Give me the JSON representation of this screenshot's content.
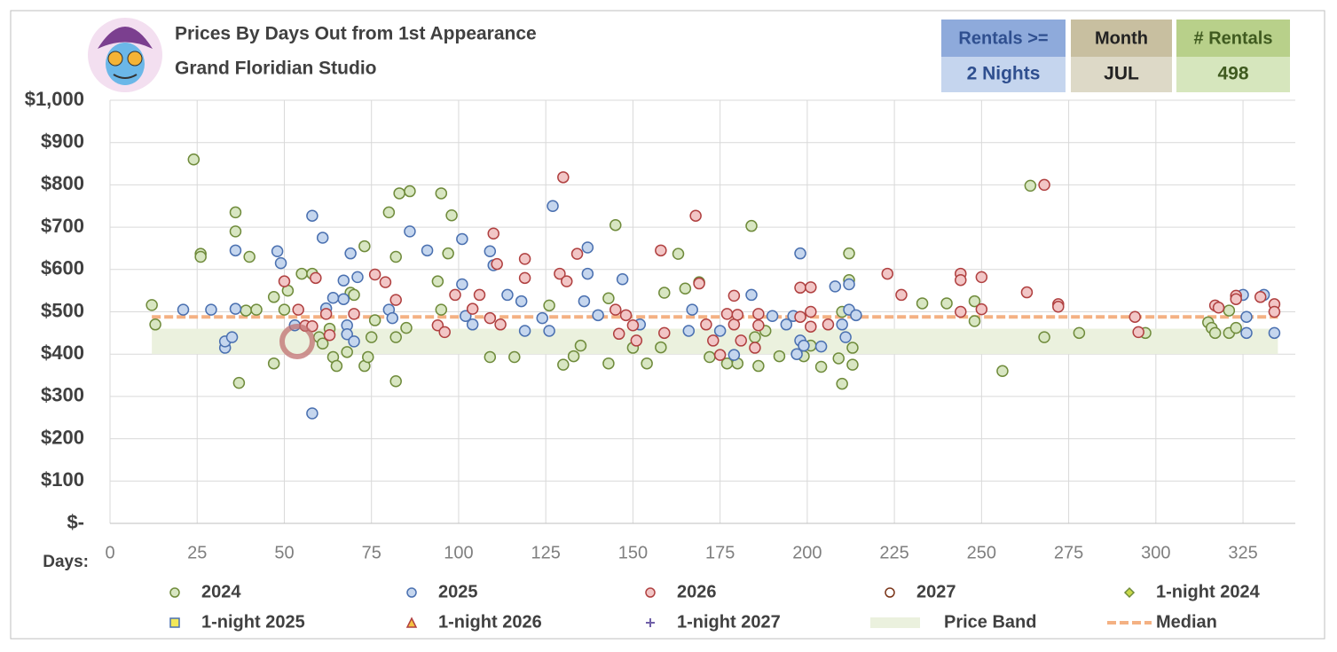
{
  "chart_data": {
    "type": "scatter",
    "title": "Prices By Days Out from 1st Appearance",
    "subtitle": "Grand Floridian Studio",
    "x_label": "Days:",
    "filters": [
      {
        "label": "Rentals >=",
        "value": "2 Nights",
        "head": "#8eaadb",
        "body": "#c5d5ee",
        "ink": "#2f4f8f"
      },
      {
        "label": "Month",
        "value": "JUL",
        "head": "#c8bfa0",
        "body": "#ddd9c7",
        "ink": "#222222"
      },
      {
        "label": "# Rentals",
        "value": "498",
        "head": "#b8d08a",
        "body": "#d6e6bd",
        "ink": "#3f5a1f"
      }
    ],
    "xlim": [
      0,
      340
    ],
    "xticks": [
      0,
      25,
      50,
      75,
      100,
      125,
      150,
      175,
      200,
      225,
      250,
      275,
      300,
      325
    ],
    "ylim": [
      0,
      1000
    ],
    "yticks": [
      {
        "value": 0,
        "label": "$-"
      },
      {
        "value": 100,
        "label": "$100"
      },
      {
        "value": 200,
        "label": "$200"
      },
      {
        "value": 300,
        "label": "$300"
      },
      {
        "value": 400,
        "label": "$400"
      },
      {
        "value": 500,
        "label": "$500"
      },
      {
        "value": 600,
        "label": "$600"
      },
      {
        "value": 700,
        "label": "$700"
      },
      {
        "value": 800,
        "label": "$800"
      },
      {
        "value": 900,
        "label": "$900"
      },
      {
        "value": 1000,
        "label": "$1,000"
      }
    ],
    "grid": true,
    "price_band": {
      "name": "Price Band",
      "x": [
        12,
        335
      ],
      "low": 400,
      "high": 460,
      "color": "#ebf1de"
    },
    "median": {
      "name": "Median",
      "x": [
        12,
        335
      ],
      "value": 488,
      "color": "#f4b183"
    },
    "series": [
      {
        "name": "2024",
        "marker": "circle",
        "color": "#d8e6c2",
        "stroke": "#6f8b3b",
        "x": [
          12,
          13,
          24,
          26,
          26,
          36,
          36,
          37,
          39,
          40,
          42,
          47,
          47,
          50,
          51,
          55,
          58,
          60,
          61,
          63,
          64,
          65,
          68,
          69,
          70,
          73,
          73,
          74,
          75,
          76,
          80,
          82,
          82,
          82,
          83,
          85,
          86,
          94,
          95,
          95,
          97,
          98,
          109,
          116,
          126,
          130,
          133,
          135,
          143,
          143,
          145,
          150,
          154,
          158,
          159,
          163,
          165,
          169,
          172,
          177,
          180,
          184,
          185,
          186,
          188,
          192,
          199,
          201,
          204,
          209,
          210,
          210,
          212,
          212,
          213,
          213,
          233,
          240,
          248,
          248,
          256,
          264,
          268,
          278,
          297,
          315,
          316,
          317,
          321,
          321,
          323
        ],
        "values": [
          516,
          470,
          860,
          637,
          630,
          735,
          690,
          332,
          503,
          630,
          505,
          378,
          535,
          505,
          550,
          590,
          590,
          440,
          425,
          460,
          393,
          372,
          405,
          545,
          540,
          655,
          372,
          393,
          440,
          480,
          735,
          630,
          336,
          440,
          780,
          462,
          785,
          572,
          780,
          505,
          638,
          728,
          393,
          393,
          515,
          375,
          395,
          420,
          378,
          532,
          705,
          415,
          378,
          416,
          545,
          637,
          555,
          570,
          393,
          378,
          378,
          703,
          440,
          372,
          455,
          395,
          395,
          420,
          370,
          390,
          330,
          500,
          638,
          575,
          375,
          415,
          520,
          520,
          525,
          478,
          360,
          798,
          440,
          450,
          450,
          475,
          462,
          450,
          503,
          450,
          462
        ]
      },
      {
        "name": "2025",
        "marker": "circle",
        "color": "#c5d6ee",
        "stroke": "#4a70b0",
        "x": [
          21,
          29,
          33,
          33,
          35,
          36,
          36,
          48,
          49,
          53,
          58,
          58,
          61,
          62,
          64,
          67,
          67,
          68,
          68,
          69,
          70,
          71,
          80,
          81,
          86,
          91,
          101,
          101,
          102,
          104,
          109,
          110,
          114,
          118,
          119,
          124,
          126,
          127,
          136,
          137,
          137,
          140,
          147,
          152,
          166,
          167,
          175,
          179,
          184,
          190,
          194,
          196,
          197,
          198,
          198,
          199,
          204,
          208,
          210,
          211,
          212,
          212,
          214,
          325,
          326,
          326,
          331,
          334
        ],
        "values": [
          505,
          505,
          415,
          430,
          440,
          645,
          507,
          643,
          615,
          468,
          260,
          727,
          675,
          508,
          533,
          530,
          574,
          468,
          447,
          638,
          430,
          582,
          505,
          485,
          690,
          645,
          672,
          565,
          490,
          470,
          643,
          610,
          540,
          525,
          455,
          485,
          455,
          750,
          525,
          590,
          652,
          492,
          577,
          470,
          455,
          505,
          455,
          398,
          540,
          490,
          470,
          490,
          400,
          638,
          432,
          420,
          418,
          560,
          470,
          440,
          505,
          565,
          492,
          540,
          488,
          450,
          540,
          450
        ]
      },
      {
        "name": "2026",
        "marker": "circle",
        "color": "#f2c6c6",
        "stroke": "#b04040",
        "x": [
          50,
          54,
          56,
          58,
          59,
          62,
          63,
          70,
          76,
          79,
          82,
          94,
          96,
          99,
          104,
          106,
          109,
          110,
          111,
          112,
          119,
          119,
          129,
          130,
          131,
          134,
          145,
          146,
          148,
          150,
          151,
          158,
          159,
          168,
          169,
          171,
          173,
          175,
          177,
          179,
          179,
          180,
          181,
          185,
          186,
          186,
          198,
          198,
          201,
          201,
          201,
          206,
          223,
          227,
          244,
          244,
          244,
          250,
          250,
          263,
          268,
          272,
          272,
          294,
          295,
          317,
          318,
          323,
          323,
          330,
          334,
          334
        ],
        "values": [
          572,
          505,
          467,
          466,
          580,
          495,
          445,
          495,
          588,
          570,
          528,
          468,
          452,
          540,
          507,
          540,
          485,
          685,
          613,
          470,
          625,
          580,
          590,
          818,
          572,
          637,
          505,
          448,
          492,
          468,
          432,
          645,
          450,
          727,
          567,
          470,
          432,
          398,
          495,
          538,
          470,
          493,
          432,
          415,
          495,
          468,
          557,
          488,
          558,
          500,
          465,
          470,
          590,
          540,
          590,
          575,
          500,
          582,
          506,
          546,
          800,
          518,
          512,
          488,
          452,
          515,
          510,
          538,
          530,
          535,
          518,
          500
        ]
      },
      {
        "name": "2027",
        "marker": "circle",
        "color": "#ffffff",
        "stroke": "#7a3418",
        "x": [],
        "values": []
      },
      {
        "name": "1-night 2024",
        "marker": "diamond",
        "color": "#c8d84a",
        "stroke": "#6f8b3b",
        "x": [],
        "values": []
      },
      {
        "name": "1-night 2025",
        "marker": "square",
        "color": "#f2e85a",
        "stroke": "#4a70b0",
        "x": [],
        "values": []
      },
      {
        "name": "1-night 2026",
        "marker": "triangle",
        "color": "#f5c242",
        "stroke": "#b04040",
        "x": [],
        "values": []
      },
      {
        "name": "1-night 2027",
        "marker": "plus",
        "color": "#7060a8",
        "stroke": "#7060a8",
        "x": [],
        "values": []
      }
    ]
  }
}
